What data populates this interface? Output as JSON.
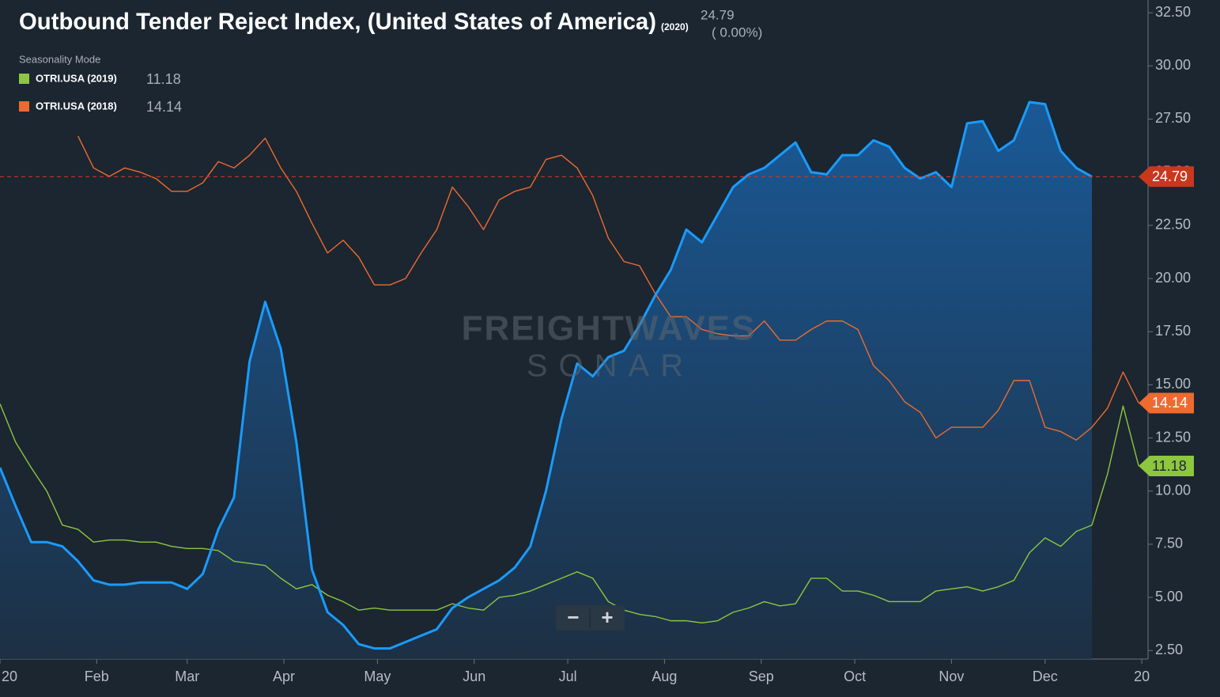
{
  "chart_data": {
    "type": "line",
    "title": "Outbound Tender Reject Index, (United States of America)",
    "headline_change": "( 0.00%)",
    "mode_label": "Seasonality Mode",
    "watermark": [
      "FREIGHTWAVES",
      "SONAR"
    ],
    "controls": [
      "−",
      "+"
    ],
    "xlim": [
      0,
      368
    ],
    "xticks": [
      {
        "value": 0,
        "label": "20"
      },
      {
        "value": 31,
        "label": "Feb"
      },
      {
        "value": 60,
        "label": "Mar"
      },
      {
        "value": 91,
        "label": "Apr"
      },
      {
        "value": 121,
        "label": "May"
      },
      {
        "value": 152,
        "label": "Jun"
      },
      {
        "value": 182,
        "label": "Jul"
      },
      {
        "value": 213,
        "label": "Aug"
      },
      {
        "value": 244,
        "label": "Sep"
      },
      {
        "value": 274,
        "label": "Oct"
      },
      {
        "value": 305,
        "label": "Nov"
      },
      {
        "value": 335,
        "label": "Dec"
      },
      {
        "value": 366,
        "label": "20"
      }
    ],
    "ylim": [
      2.1,
      33.1
    ],
    "yticks": [
      {
        "value": 2.5,
        "label": "2.50"
      },
      {
        "value": 5,
        "label": "5.00"
      },
      {
        "value": 7.5,
        "label": "7.50"
      },
      {
        "value": 10,
        "label": "10.00"
      },
      {
        "value": 12.5,
        "label": "12.50"
      },
      {
        "value": 15,
        "label": "15.00"
      },
      {
        "value": 17.5,
        "label": "17.50"
      },
      {
        "value": 20,
        "label": "20.00"
      },
      {
        "value": 22.5,
        "label": "22.50"
      },
      {
        "value": 25,
        "label": "25.00"
      },
      {
        "value": 27.5,
        "label": "27.50"
      },
      {
        "value": 30,
        "label": "30.00"
      },
      {
        "value": 32.5,
        "label": "32.50"
      }
    ],
    "grid": false,
    "x": [
      0,
      5,
      10,
      15,
      20,
      25,
      30,
      35,
      40,
      45,
      50,
      55,
      60,
      65,
      70,
      75,
      80,
      85,
      90,
      95,
      100,
      105,
      110,
      115,
      120,
      125,
      130,
      135,
      140,
      145,
      150,
      155,
      160,
      165,
      170,
      175,
      180,
      185,
      190,
      195,
      200,
      205,
      210,
      215,
      220,
      225,
      230,
      235,
      240,
      245,
      250,
      255,
      260,
      265,
      270,
      275,
      280,
      285,
      290,
      295,
      300,
      305,
      310,
      315,
      320,
      325,
      330,
      335,
      340,
      345,
      350,
      355,
      360,
      365
    ],
    "series": [
      {
        "name": "(2020)",
        "color": "#1a9bfc",
        "area": true,
        "tag_color": "#c9381d",
        "values": [
          11.1,
          9.3,
          7.6,
          7.6,
          7.4,
          6.7,
          5.8,
          5.6,
          5.6,
          5.7,
          5.7,
          5.7,
          5.4,
          6.1,
          8.2,
          9.7,
          16.1,
          18.9,
          16.7,
          12.3,
          6.3,
          4.3,
          3.7,
          2.8,
          2.6,
          2.6,
          2.9,
          3.2,
          3.5,
          4.5,
          5.0,
          5.4,
          5.8,
          6.4,
          7.4,
          10.0,
          13.4,
          16.0,
          15.4,
          16.3,
          16.6,
          17.8,
          19.2,
          20.4,
          22.3,
          21.7,
          23.0,
          24.3,
          24.9,
          25.2,
          25.8,
          26.4,
          25.0,
          24.9,
          25.8,
          25.8,
          26.5,
          26.2,
          25.2,
          24.7,
          25.0,
          24.3,
          27.3,
          27.4,
          26.0,
          26.5,
          28.3,
          28.2,
          26.0,
          25.2,
          24.79,
          null,
          null,
          null
        ]
      },
      {
        "name": "OTRI.USA (2019)",
        "color": "#8dc63f",
        "area": false,
        "tag_color": "#8dc63f",
        "values": [
          14.1,
          12.3,
          11.1,
          10.0,
          8.4,
          8.2,
          7.6,
          7.7,
          7.7,
          7.6,
          7.6,
          7.4,
          7.3,
          7.3,
          7.2,
          6.7,
          6.6,
          6.5,
          5.9,
          5.4,
          5.6,
          5.1,
          4.8,
          4.4,
          4.5,
          4.4,
          4.4,
          4.4,
          4.4,
          4.7,
          4.5,
          4.4,
          5.0,
          5.1,
          5.3,
          5.6,
          5.9,
          6.2,
          5.9,
          4.8,
          4.4,
          4.2,
          4.1,
          3.9,
          3.9,
          3.8,
          3.9,
          4.3,
          4.5,
          4.8,
          4.6,
          4.7,
          5.9,
          5.9,
          5.3,
          5.3,
          5.1,
          4.8,
          4.8,
          4.8,
          5.3,
          5.4,
          5.5,
          5.3,
          5.5,
          5.8,
          7.1,
          7.8,
          7.4,
          8.1,
          8.4,
          10.8,
          14.0,
          11.18
        ]
      },
      {
        "name": "OTRI.USA (2018)",
        "color": "#ef6a2e",
        "area": false,
        "tag_color": "#ef6a2e",
        "values": [
          null,
          null,
          null,
          null,
          null,
          26.7,
          25.2,
          24.8,
          25.2,
          25.0,
          24.7,
          24.1,
          24.1,
          24.5,
          25.5,
          25.2,
          25.8,
          26.6,
          25.2,
          24.1,
          22.6,
          21.2,
          21.8,
          21.0,
          19.7,
          19.7,
          20.0,
          21.2,
          22.3,
          24.3,
          23.4,
          22.3,
          23.7,
          24.1,
          24.3,
          25.6,
          25.8,
          25.2,
          23.9,
          21.9,
          20.8,
          20.6,
          19.3,
          18.2,
          18.2,
          17.6,
          17.4,
          17.3,
          17.3,
          18.0,
          17.1,
          17.1,
          17.6,
          18.0,
          18.0,
          17.6,
          15.9,
          15.2,
          14.2,
          13.7,
          12.5,
          13.0,
          13.0,
          13.0,
          13.8,
          15.2,
          15.2,
          13.0,
          12.8,
          12.4,
          13.0,
          13.9,
          15.6,
          14.14
        ]
      }
    ]
  }
}
